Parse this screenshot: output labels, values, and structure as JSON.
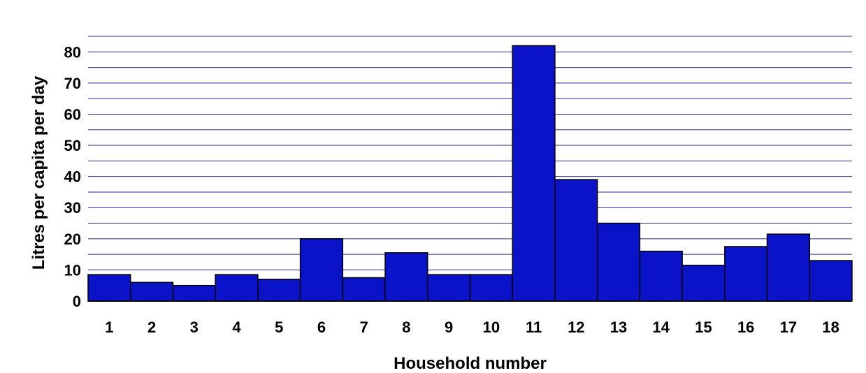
{
  "chart_data": {
    "type": "bar",
    "categories": [
      "1",
      "2",
      "3",
      "4",
      "5",
      "6",
      "7",
      "8",
      "9",
      "10",
      "11",
      "12",
      "13",
      "14",
      "15",
      "16",
      "17",
      "18"
    ],
    "values": [
      8.5,
      6,
      5,
      8.5,
      7,
      20,
      7.5,
      15.5,
      8.5,
      8.5,
      82,
      39,
      25,
      16,
      11.5,
      17.5,
      21.5,
      13
    ],
    "title": "",
    "xlabel": "Household number",
    "ylabel": "Litres per capita per day",
    "ylim": [
      0,
      85
    ],
    "yticks": [
      0,
      10,
      20,
      30,
      40,
      50,
      60,
      70,
      80
    ],
    "grid": true,
    "legend": "none",
    "colors": {
      "bar": "#0b13c8",
      "grid": "#2a2f8a",
      "axis": "#000000"
    }
  }
}
